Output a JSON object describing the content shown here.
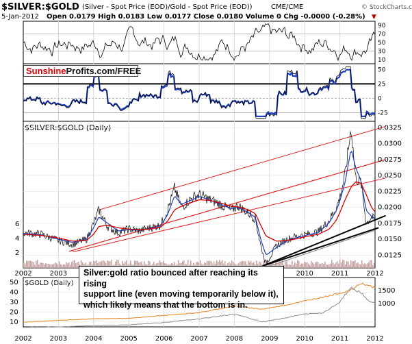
{
  "header": {
    "title": "$SILVER:$GOLD",
    "subtitle": "(Silver - Spot Price (EOD)/Gold - Spot Price (EOD))",
    "exchange": "CME/CME",
    "watermark": "© StockCharts.com",
    "date": "5-Jan-2012",
    "ohlc": "Open 0.0179  High 0.0183  Low 0.0177  Close 0.0180  Volume 0  Chg -0.0000 (-0.28%)",
    "chg_marker": "▼"
  },
  "logo": {
    "red": "Sunshine",
    "black": "Profits.com/FREE"
  },
  "annotation": {
    "lines": [
      "Silver:gold ratio bounced after reaching its rising",
      "support line (even moving temporarily below it),",
      "which likely means that the bottom is in."
    ]
  },
  "colors": {
    "price": "#000000",
    "ma_blue": "#1f3fbf",
    "ma_red": "#d40000",
    "channel": "#e02020",
    "support": "#000000",
    "gold_series": "#e8821e",
    "silver_series": "#8a8a8a",
    "volume": "#c9a6a6",
    "grid": "#d8d8d8"
  },
  "chart_data": [
    {
      "type": "line",
      "name": "rsi-panel",
      "y_ticks": [
        "90",
        "70",
        "50",
        "30",
        "10"
      ],
      "ylim": [
        0,
        100
      ],
      "reference_lines": [
        70,
        30
      ],
      "x": [
        "2002",
        "2003",
        "2004",
        "2005",
        "2006",
        "2007",
        "2008",
        "2009",
        "2010",
        "2011",
        "2012"
      ]
    },
    {
      "type": "line",
      "name": "roc-panel",
      "y_ticks": [
        "50",
        "25",
        "0",
        "-25"
      ],
      "ylim": [
        -40,
        60
      ],
      "reference_lines": [
        25,
        0,
        -25
      ],
      "x": [
        "2002",
        "2003",
        "2004",
        "2005",
        "2006",
        "2007",
        "2008",
        "2009",
        "2010",
        "2011",
        "2012"
      ]
    },
    {
      "type": "line",
      "title": "$SILVER:$GOLD (Daily)",
      "right_ticks": [
        "0.0325",
        "0.0300",
        "0.0275",
        "0.0250",
        "0.0225",
        "0.0200",
        "0.0175",
        "0.0150",
        "0.0125"
      ],
      "left_ticks": [
        "6",
        "4",
        "2"
      ],
      "x_ticks": [
        "2002",
        "2003",
        "2004",
        "2005",
        "2006",
        "2007",
        "2008",
        "2009",
        "2010",
        "2011",
        "2012"
      ],
      "ylim": [
        0.0105,
        0.0335
      ],
      "x": [
        2002.0,
        2002.5,
        2003.0,
        2003.4,
        2003.8,
        2004.0,
        2004.15,
        2004.4,
        2004.7,
        2005.0,
        2005.3,
        2005.6,
        2005.9,
        2006.1,
        2006.3,
        2006.5,
        2006.8,
        2007.0,
        2007.3,
        2007.6,
        2007.9,
        2008.1,
        2008.4,
        2008.6,
        2008.75,
        2008.9,
        2009.2,
        2009.5,
        2009.8,
        2010.1,
        2010.4,
        2010.7,
        2010.9,
        2011.0,
        2011.15,
        2011.32,
        2011.45,
        2011.6,
        2011.75,
        2011.9,
        2012.0
      ],
      "series": [
        {
          "name": "$SILVER:$GOLD",
          "values": [
            0.016,
            0.0158,
            0.0148,
            0.0142,
            0.015,
            0.0175,
            0.0196,
            0.017,
            0.016,
            0.0166,
            0.0163,
            0.0168,
            0.0172,
            0.0195,
            0.023,
            0.02,
            0.0215,
            0.022,
            0.0212,
            0.0205,
            0.0195,
            0.0203,
            0.0191,
            0.0182,
            0.014,
            0.0112,
            0.014,
            0.015,
            0.0155,
            0.0158,
            0.0162,
            0.018,
            0.02,
            0.0215,
            0.0252,
            0.0325,
            0.0245,
            0.024,
            0.0175,
            0.0185,
            0.018
          ]
        },
        {
          "name": "moving-average-short",
          "values": [
            0.0159,
            0.0157,
            0.015,
            0.0145,
            0.015,
            0.0168,
            0.0185,
            0.0175,
            0.0163,
            0.0165,
            0.0164,
            0.0167,
            0.0171,
            0.0188,
            0.0218,
            0.0205,
            0.0212,
            0.0217,
            0.0212,
            0.0205,
            0.0198,
            0.02,
            0.0192,
            0.0184,
            0.015,
            0.0125,
            0.0137,
            0.0148,
            0.0153,
            0.0157,
            0.0161,
            0.0176,
            0.0195,
            0.021,
            0.024,
            0.0292,
            0.0262,
            0.0242,
            0.0195,
            0.0186,
            0.0182
          ]
        },
        {
          "name": "moving-average-long",
          "values": [
            0.0158,
            0.0156,
            0.0152,
            0.0147,
            0.0148,
            0.0158,
            0.017,
            0.0172,
            0.0168,
            0.0166,
            0.0165,
            0.0166,
            0.0169,
            0.0178,
            0.0196,
            0.0202,
            0.0208,
            0.0212,
            0.0211,
            0.0207,
            0.0202,
            0.0201,
            0.0196,
            0.019,
            0.0172,
            0.0155,
            0.0147,
            0.0148,
            0.0151,
            0.0155,
            0.0158,
            0.0166,
            0.018,
            0.0192,
            0.0212,
            0.0232,
            0.024,
            0.0238,
            0.022,
            0.02,
            0.0193
          ]
        }
      ]
    },
    {
      "type": "line",
      "title": "$GOLD (Daily)",
      "left_ticks": [
        "50",
        "40",
        "30",
        "20",
        "10"
      ],
      "right_ticks": [
        "1500",
        "1000"
      ],
      "x_ticks": [
        "2002",
        "2003",
        "2004",
        "2005",
        "2006",
        "2007",
        "2008",
        "2009",
        "2010",
        "2011",
        "2012"
      ],
      "x": [
        2002.0,
        2003.0,
        2004.0,
        2005.0,
        2006.0,
        2007.0,
        2008.0,
        2008.8,
        2009.5,
        2010.0,
        2010.5,
        2011.0,
        2011.3,
        2011.6,
        2011.8,
        2012.0
      ],
      "series": [
        {
          "name": "$GOLD",
          "values": [
            280,
            350,
            410,
            430,
            540,
            650,
            900,
            780,
            950,
            1100,
            1240,
            1400,
            1500,
            1780,
            1700,
            1600
          ]
        },
        {
          "name": "$SILVER",
          "values": [
            4.6,
            4.9,
            6.5,
            7.0,
            9.5,
            13.0,
            18.0,
            10.0,
            14.5,
            18.0,
            19.0,
            30.0,
            45.0,
            40.0,
            32.0,
            29.0
          ]
        }
      ]
    }
  ]
}
